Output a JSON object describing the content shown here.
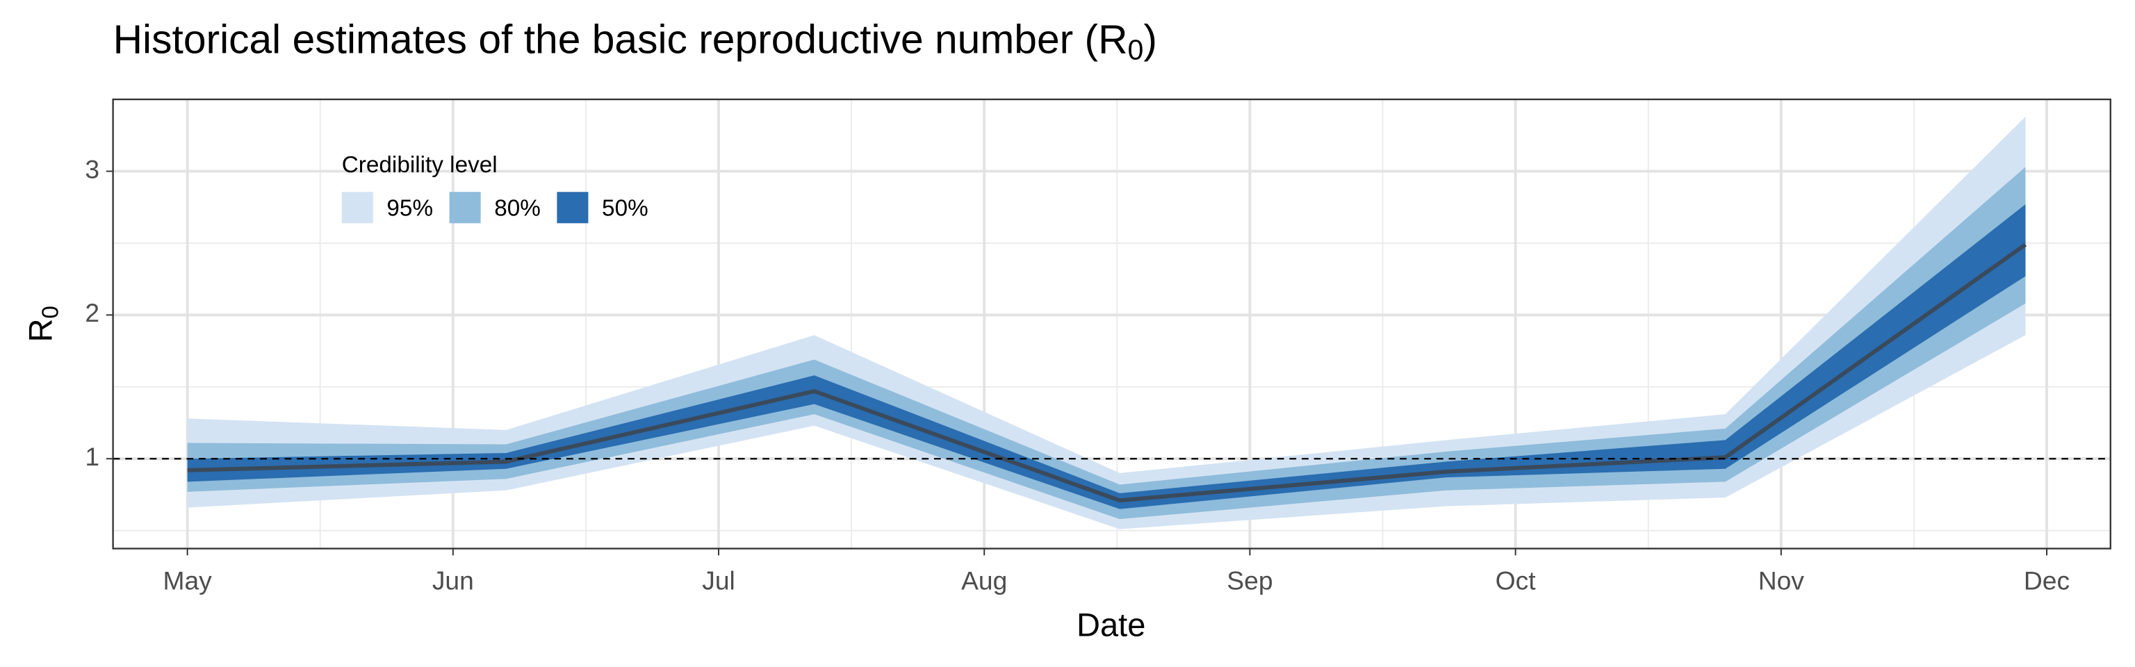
{
  "chart_data": {
    "type": "ribbon",
    "title": [
      "Historical estimates of the basic reproductive number (R",
      "0",
      ")"
    ],
    "xlabel": "Date",
    "ylabel": [
      "R",
      "0"
    ],
    "x": [
      5.0,
      6.2,
      7.36,
      8.51,
      9.74,
      10.79,
      11.92
    ],
    "xlim": [
      4.72,
      12.24
    ],
    "xticks": [
      {
        "value": 5,
        "label": "May"
      },
      {
        "value": 6,
        "label": "Jun"
      },
      {
        "value": 7,
        "label": "Jul"
      },
      {
        "value": 8,
        "label": "Aug"
      },
      {
        "value": 9,
        "label": "Sep"
      },
      {
        "value": 10,
        "label": "Oct"
      },
      {
        "value": 11,
        "label": "Nov"
      },
      {
        "value": 12,
        "label": "Dec"
      }
    ],
    "ylim": [
      0.375,
      3.5
    ],
    "yticks": [
      1,
      2,
      3
    ],
    "grid": true,
    "hline": 1,
    "legend_title": "Credibility level",
    "legend_position": "top-left",
    "series": [
      {
        "name": "95%",
        "color": "#d4e3f3",
        "lower": [
          0.66,
          0.78,
          1.23,
          0.51,
          0.67,
          0.73,
          1.86
        ],
        "upper": [
          1.28,
          1.2,
          1.86,
          0.9,
          1.13,
          1.31,
          3.38
        ]
      },
      {
        "name": "80%",
        "color": "#8fbcdb",
        "lower": [
          0.77,
          0.86,
          1.31,
          0.58,
          0.78,
          0.84,
          2.08
        ],
        "upper": [
          1.11,
          1.1,
          1.69,
          0.82,
          1.05,
          1.21,
          3.03
        ]
      },
      {
        "name": "50%",
        "color": "#2a6db0",
        "lower": [
          0.84,
          0.93,
          1.38,
          0.65,
          0.87,
          0.93,
          2.27
        ],
        "upper": [
          1.0,
          1.04,
          1.58,
          0.76,
          0.98,
          1.13,
          2.77
        ]
      }
    ],
    "median": {
      "color": "#3a4a5c",
      "values": [
        0.92,
        0.98,
        1.47,
        0.71,
        0.91,
        1.01,
        2.49
      ]
    }
  }
}
